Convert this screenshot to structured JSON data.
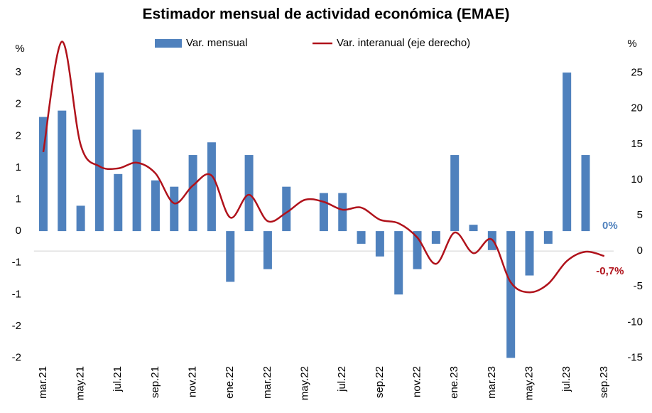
{
  "chart_data": {
    "type": "bar_line",
    "title": "Estimador mensual de actividad económica (EMAE)",
    "ylabel": "%",
    "y2label": "%",
    "categories": [
      "mar.21",
      null,
      "may.21",
      null,
      "jul.21",
      null,
      "sep.21",
      null,
      "nov.21",
      null,
      "ene.22",
      null,
      "mar.22",
      null,
      "may.22",
      null,
      "jul.22",
      null,
      "sep.22",
      null,
      "nov.22",
      null,
      "ene.23",
      null,
      "mar.23",
      null,
      "may.23",
      null,
      "jul.23",
      null,
      "sep.23"
    ],
    "series": [
      {
        "name": "Var. mensual",
        "type": "bar",
        "color": "#4f81bd",
        "axis": "y",
        "values": [
          1.8,
          1.9,
          0.4,
          2.5,
          0.9,
          1.6,
          0.8,
          0.7,
          1.2,
          1.4,
          -0.8,
          1.2,
          -0.6,
          0.7,
          0,
          0.6,
          0.6,
          -0.2,
          -0.4,
          -1.0,
          -0.6,
          -0.2,
          1.2,
          0.1,
          -0.3,
          -2.0,
          -0.7,
          -0.2,
          2.5,
          1.2,
          0
        ],
        "value_labels": [
          null,
          null,
          null,
          null,
          null,
          null,
          null,
          null,
          null,
          null,
          null,
          null,
          null,
          null,
          null,
          null,
          null,
          null,
          null,
          null,
          null,
          null,
          null,
          null,
          null,
          null,
          null,
          null,
          null,
          null,
          "0%"
        ]
      },
      {
        "name": "Var. interanual (eje derecho)",
        "type": "line",
        "color": "#b0121b",
        "axis": "y2",
        "values": [
          13.9,
          29.4,
          14.9,
          11.9,
          11.6,
          12.4,
          10.9,
          6.7,
          9.2,
          10.6,
          4.7,
          7.9,
          4.2,
          5.4,
          7.2,
          6.9,
          5.8,
          6.1,
          4.4,
          3.9,
          1.9,
          -1.8,
          2.6,
          -0.3,
          1.6,
          -4.4,
          -5.8,
          -4.6,
          -1.4,
          -0.1,
          -0.7
        ],
        "value_labels": [
          null,
          null,
          null,
          null,
          null,
          null,
          null,
          null,
          null,
          null,
          null,
          null,
          null,
          null,
          null,
          null,
          null,
          null,
          null,
          null,
          null,
          null,
          null,
          null,
          null,
          null,
          null,
          null,
          null,
          null,
          "-0,7%"
        ]
      }
    ],
    "ylim": [
      -2,
      3
    ],
    "yticks": [
      {
        "value": 2.5,
        "label": "3"
      },
      2,
      {
        "value": 1.5,
        "label": "2"
      },
      1,
      {
        "value": 0.5,
        "label": "1"
      },
      0,
      {
        "value": -0.5,
        "label": "-1"
      },
      -1,
      {
        "value": -1.5,
        "label": "-2"
      },
      -2
    ],
    "y2lim": [
      -15,
      29.5
    ],
    "y2ticks": [
      25,
      20,
      15,
      10,
      5,
      0,
      -5,
      -10,
      -15
    ],
    "grid": false,
    "legend": "top"
  }
}
